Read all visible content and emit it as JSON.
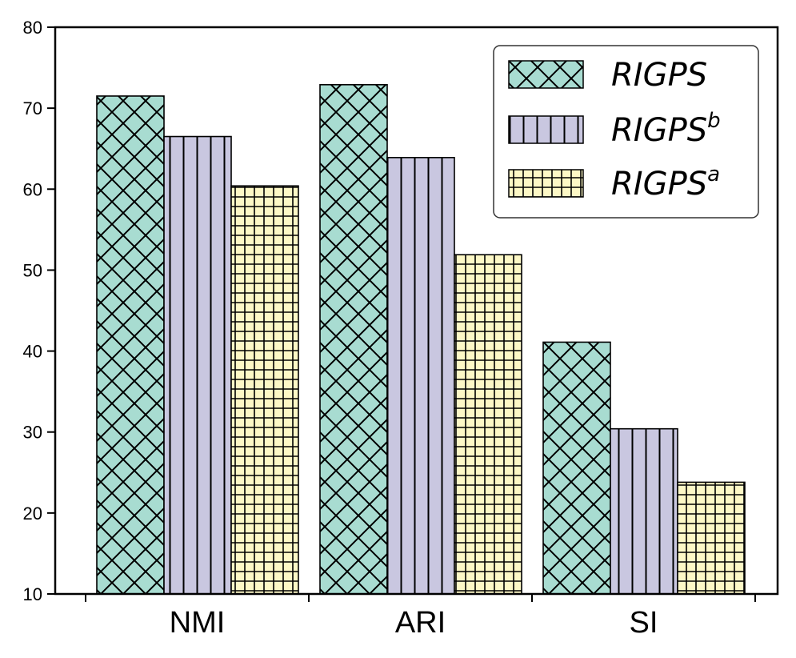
{
  "chart_data": {
    "type": "bar",
    "categories": [
      "NMI",
      "ARI",
      "SI"
    ],
    "series": [
      {
        "name": "RIGPS",
        "values": [
          71.5,
          72.9,
          41.1
        ],
        "color": "#a8dcd1",
        "pattern": "crosshatch"
      },
      {
        "name": "RIGPS^b",
        "values": [
          66.5,
          63.9,
          30.4
        ],
        "color": "#c9c7e0",
        "pattern": "vertical-lines"
      },
      {
        "name": "RIGPS^a",
        "values": [
          60.4,
          51.9,
          23.8
        ],
        "color": "#fdf8c6",
        "pattern": "grid"
      }
    ],
    "legend": [
      {
        "base": "RIGPS",
        "sup": ""
      },
      {
        "base": "RIGPS",
        "sup": "b"
      },
      {
        "base": "RIGPS",
        "sup": "a"
      }
    ],
    "yticks": [
      "10",
      "20",
      "30",
      "40",
      "50",
      "60",
      "70",
      "80"
    ],
    "ylim": [
      10,
      80
    ],
    "grid": false,
    "legend_position": "top-right",
    "title": "",
    "xlabel": "",
    "ylabel": ""
  }
}
